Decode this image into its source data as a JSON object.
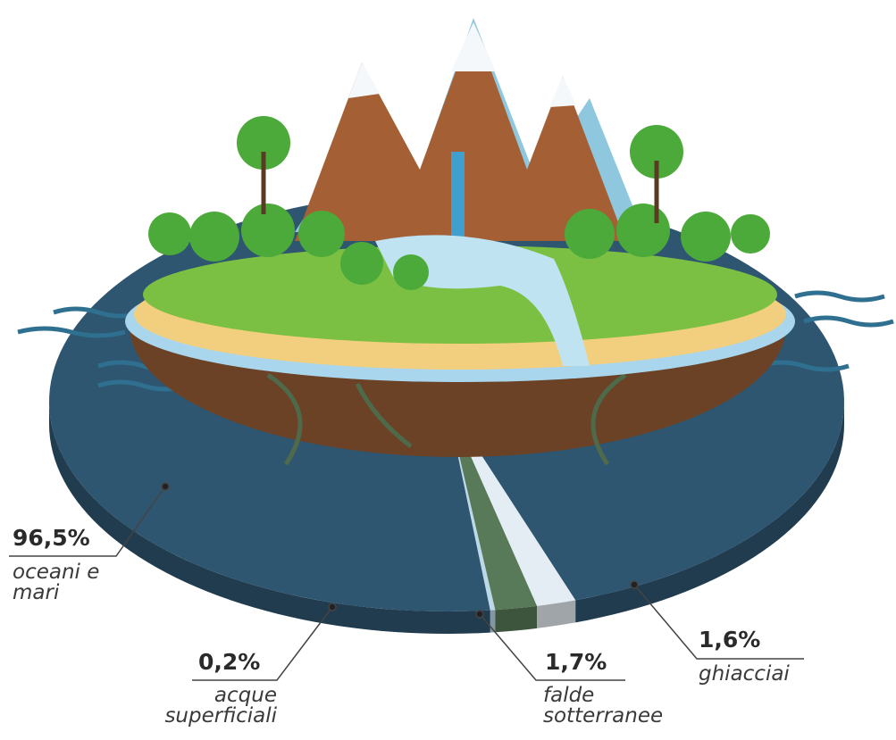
{
  "chart_data": {
    "type": "pie",
    "categories": [
      "oceani e mari",
      "acque superficiali",
      "falde sotterranee",
      "ghiacciai"
    ],
    "values": [
      96.5,
      0.2,
      1.7,
      1.6
    ],
    "value_labels": [
      "96,5%",
      "0,2%",
      "1,7%",
      "1,6%"
    ],
    "colors": [
      "#2f5670",
      "#bcd9ea",
      "#587a58",
      "#e4edf3"
    ]
  }
}
